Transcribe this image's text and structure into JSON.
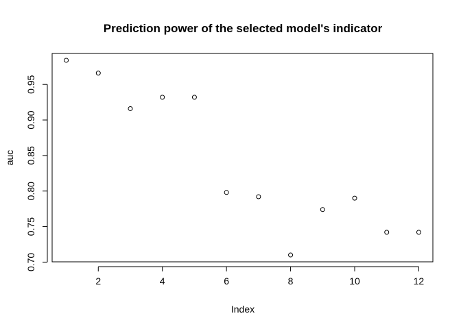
{
  "chart_data": {
    "type": "scatter",
    "title": "Prediction power of the selected model's indicator",
    "xlabel": "Index",
    "ylabel": "auc",
    "x": [
      1,
      2,
      3,
      4,
      5,
      6,
      7,
      8,
      9,
      10,
      11,
      12
    ],
    "y": [
      0.984,
      0.966,
      0.916,
      0.932,
      0.932,
      0.798,
      0.792,
      0.71,
      0.774,
      0.79,
      0.742,
      0.742
    ],
    "xlim": [
      0.56,
      12.44
    ],
    "ylim": [
      0.7004,
      0.9936
    ],
    "xticks": [
      2,
      4,
      6,
      8,
      10,
      12
    ],
    "xtick_labels": [
      "2",
      "4",
      "6",
      "8",
      "10",
      "12"
    ],
    "yticks": [
      0.7,
      0.75,
      0.8,
      0.85,
      0.9,
      0.95
    ],
    "ytick_labels": [
      "0.70",
      "0.75",
      "0.80",
      "0.85",
      "0.90",
      "0.95"
    ],
    "grid": false,
    "marker": "open-circle"
  }
}
